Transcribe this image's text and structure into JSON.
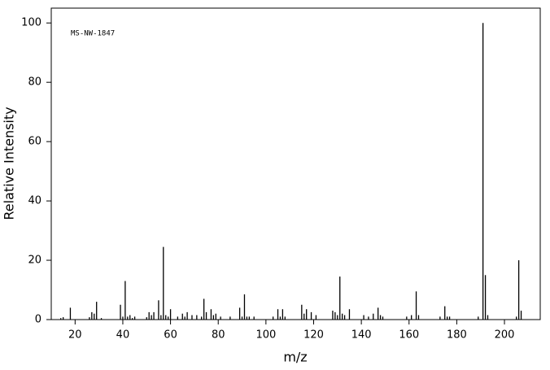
{
  "chart_data": {
    "type": "bar",
    "annotation": "MS-NW-1847",
    "x_label": "m/z",
    "y_label": "Relative Intensity",
    "color": "#000000",
    "xlim": [
      10,
      215
    ],
    "ylim": [
      0,
      105
    ],
    "xticks": [
      20,
      40,
      60,
      80,
      100,
      120,
      140,
      160,
      180,
      200
    ],
    "yticks": [
      0,
      20,
      40,
      60,
      80,
      100
    ],
    "x": [
      14,
      15,
      18,
      26,
      27,
      28,
      29,
      31,
      39,
      40,
      41,
      42,
      43,
      44,
      45,
      50,
      51,
      52,
      53,
      55,
      56,
      57,
      58,
      59,
      60,
      63,
      65,
      66,
      67,
      69,
      71,
      73,
      74,
      75,
      77,
      78,
      79,
      81,
      85,
      89,
      90,
      91,
      92,
      93,
      95,
      103,
      105,
      106,
      107,
      108,
      115,
      116,
      117,
      119,
      121,
      128,
      129,
      130,
      131,
      132,
      133,
      135,
      141,
      143,
      145,
      147,
      148,
      149,
      159,
      161,
      163,
      164,
      173,
      175,
      176,
      177,
      189,
      191,
      192,
      193,
      205,
      206,
      207
    ],
    "values": [
      0.5,
      0.8,
      4,
      0.8,
      2.5,
      2,
      6,
      0.5,
      5,
      1,
      13,
      1,
      1.5,
      0.5,
      1,
      0.8,
      2.5,
      1.5,
      2.5,
      6.5,
      1.5,
      24.5,
      1.5,
      1,
      3.5,
      1,
      2,
      1,
      2.5,
      1.5,
      1.5,
      1,
      7,
      2.5,
      3.5,
      1.5,
      2,
      1,
      1,
      4,
      1,
      8.5,
      1,
      1,
      1,
      1,
      3.5,
      1,
      3.5,
      1,
      5,
      2,
      3.5,
      2.5,
      1.5,
      3,
      2.5,
      1.5,
      14.5,
      2,
      1.5,
      3.5,
      1.5,
      1,
      2,
      4,
      1.5,
      1,
      1,
      1.5,
      9.5,
      1.5,
      1,
      4.5,
      1,
      1,
      1,
      100,
      15,
      1.5,
      1,
      20,
      3
    ]
  }
}
